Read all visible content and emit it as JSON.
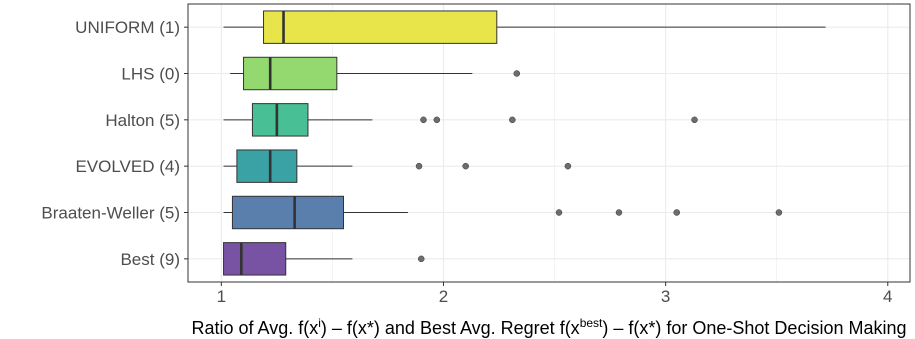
{
  "chart_data": {
    "type": "boxplot",
    "orientation": "horizontal",
    "xlabel_parts": [
      {
        "text": "Ratio of Avg. f(x",
        "sup": false
      },
      {
        "text": "i",
        "sup": true
      },
      {
        "text": ") – f(x*) and Best Avg. Regret f(x",
        "sup": false
      },
      {
        "text": "best",
        "sup": true
      },
      {
        "text": ") – f(x*) for One-Shot Decision Making",
        "sup": false
      }
    ],
    "xlim": [
      0.85,
      4.1
    ],
    "xticks": [
      1,
      2,
      3,
      4
    ],
    "xtick_labels": [
      "1",
      "2",
      "3",
      "4"
    ],
    "grid": true,
    "categories": [
      "UNIFORM (1)",
      "LHS (0)",
      "Halton (5)",
      "EVOLVED (4)",
      "Braaten-Weller (5)",
      "Best (9)"
    ],
    "boxes": [
      {
        "label": "UNIFORM (1)",
        "color": "#e8e54a",
        "whisker_low": 1.01,
        "q1": 1.19,
        "median": 1.28,
        "q3": 2.24,
        "whisker_high": 3.72,
        "outliers": []
      },
      {
        "label": "LHS (0)",
        "color": "#93d96f",
        "whisker_low": 1.04,
        "q1": 1.1,
        "median": 1.22,
        "q3": 1.52,
        "whisker_high": 2.13,
        "outliers": [
          2.33
        ]
      },
      {
        "label": "Halton (5)",
        "color": "#48bf95",
        "whisker_low": 1.01,
        "q1": 1.14,
        "median": 1.25,
        "q3": 1.39,
        "whisker_high": 1.68,
        "outliers": [
          1.91,
          1.97,
          2.31,
          3.13
        ]
      },
      {
        "label": "EVOLVED (4)",
        "color": "#3aa2a4",
        "whisker_low": 1.01,
        "q1": 1.07,
        "median": 1.22,
        "q3": 1.34,
        "whisker_high": 1.59,
        "outliers": [
          1.89,
          2.1,
          2.56
        ]
      },
      {
        "label": "Braaten-Weller (5)",
        "color": "#5a7fad",
        "whisker_low": 1.01,
        "q1": 1.05,
        "median": 1.33,
        "q3": 1.55,
        "whisker_high": 1.84,
        "outliers": [
          2.52,
          2.79,
          3.05,
          3.51
        ]
      },
      {
        "label": "Best (9)",
        "color": "#7953a3",
        "whisker_low": 1.01,
        "q1": 1.01,
        "median": 1.09,
        "q3": 1.29,
        "whisker_high": 1.59,
        "outliers": [
          1.9
        ]
      }
    ]
  }
}
